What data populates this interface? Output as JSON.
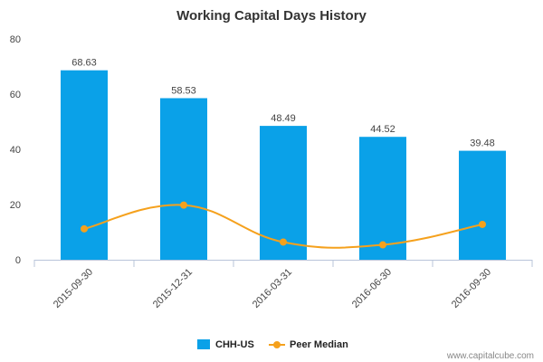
{
  "chart_data": {
    "type": "bar",
    "title": "Working Capital Days History",
    "categories": [
      "2015-09-30",
      "2015-12-31",
      "2016-03-31",
      "2016-06-30",
      "2016-09-30"
    ],
    "ylim": [
      0,
      80
    ],
    "yticks": [
      0,
      20,
      40,
      60,
      80
    ],
    "grid": false,
    "legend_position": "bottom",
    "series": [
      {
        "name": "CHH-US",
        "type": "bar",
        "color": "#0aa1e8",
        "values": [
          68.63,
          58.53,
          48.49,
          44.52,
          39.48
        ],
        "labels": [
          "68.63",
          "58.53",
          "48.49",
          "44.52",
          "39.48"
        ]
      },
      {
        "name": "Peer Median",
        "type": "line",
        "color": "#f5a11d",
        "values": [
          11.2,
          19.8,
          6.4,
          5.4,
          12.8
        ]
      }
    ]
  },
  "watermark": "www.capitalcube.com"
}
